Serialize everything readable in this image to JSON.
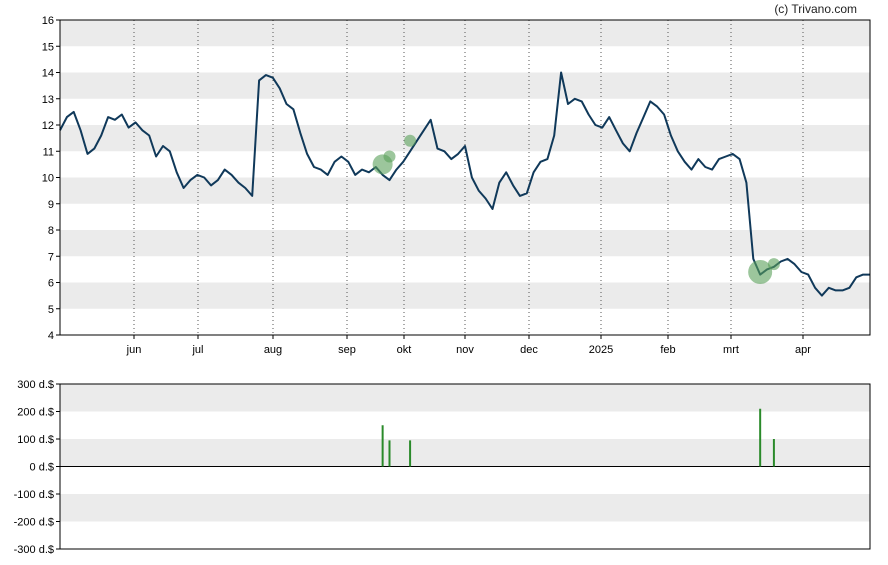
{
  "credit": "(c) Trivano.com",
  "colors": {
    "line": "#10395a",
    "band": "#ebebeb",
    "bubble": "#5aa05a",
    "volume_bar": "#2a8a2a",
    "axis": "#000000"
  },
  "chart_data": [
    {
      "type": "line",
      "title": "",
      "xlabel": "",
      "ylabel": "",
      "ylim": [
        4,
        16
      ],
      "yticks": [
        "4",
        "5",
        "6",
        "7",
        "8",
        "9",
        "10",
        "11",
        "12",
        "13",
        "14",
        "15",
        "16"
      ],
      "xticks": [
        "jun",
        "jul",
        "aug",
        "sep",
        "okt",
        "nov",
        "dec",
        "2025",
        "feb",
        "mrt",
        "apr"
      ],
      "grid": "alternating horizontal bands, dotted vertical lines at month ticks",
      "series": [
        {
          "values": [
            11.8,
            12.3,
            12.5,
            11.8,
            10.9,
            11.1,
            11.6,
            12.3,
            12.2,
            12.4,
            11.9,
            12.1,
            11.8,
            11.6,
            10.8,
            11.2,
            11.0,
            10.2,
            9.6,
            9.9,
            10.1,
            10.0,
            9.7,
            9.9,
            10.3,
            10.1,
            9.8,
            9.6,
            9.3,
            13.7,
            13.9,
            13.8,
            13.4,
            12.8,
            12.6,
            11.7,
            10.9,
            10.4,
            10.3,
            10.1,
            10.6,
            10.8,
            10.6,
            10.1,
            10.3,
            10.2,
            10.4,
            10.1,
            9.9,
            10.3,
            10.6,
            11.0,
            11.4,
            11.8,
            12.2,
            11.1,
            11.0,
            10.7,
            10.9,
            11.2,
            10.0,
            9.5,
            9.2,
            8.8,
            9.8,
            10.2,
            9.7,
            9.3,
            9.4,
            10.2,
            10.6,
            10.7,
            11.6,
            14.0,
            12.8,
            13.0,
            12.9,
            12.4,
            12.0,
            11.9,
            12.3,
            11.8,
            11.3,
            11.0,
            11.7,
            12.3,
            12.9,
            12.7,
            12.4,
            11.6,
            11.0,
            10.6,
            10.3,
            10.7,
            10.4,
            10.3,
            10.7,
            10.8,
            10.9,
            10.7,
            9.8,
            6.9,
            6.3,
            6.5,
            6.6,
            6.8,
            6.9,
            6.7,
            6.4,
            6.3,
            5.8,
            5.5,
            5.8,
            5.7,
            5.7,
            5.8,
            6.2,
            6.3,
            6.3
          ]
        }
      ],
      "events": [
        {
          "index": 47,
          "value": 10.5,
          "size": 10
        },
        {
          "index": 48,
          "value": 10.8,
          "size": 6
        },
        {
          "index": 51,
          "value": 11.4,
          "size": 6
        },
        {
          "index": 102,
          "value": 6.4,
          "size": 12
        },
        {
          "index": 104,
          "value": 6.7,
          "size": 6
        }
      ]
    },
    {
      "type": "bar",
      "title": "",
      "xlabel": "",
      "ylabel": "",
      "ylim": [
        -300,
        300
      ],
      "yticks": [
        "300 d.$",
        "200 d.$",
        "100 d.$",
        "0 d.$",
        "-100 d.$",
        "-200 d.$",
        "-300 d.$"
      ],
      "grid": "alternating horizontal bands",
      "bars": [
        {
          "index": 47,
          "value": 150
        },
        {
          "index": 48,
          "value": 95
        },
        {
          "index": 51,
          "value": 95
        },
        {
          "index": 102,
          "value": 210
        },
        {
          "index": 104,
          "value": 100
        }
      ]
    }
  ]
}
